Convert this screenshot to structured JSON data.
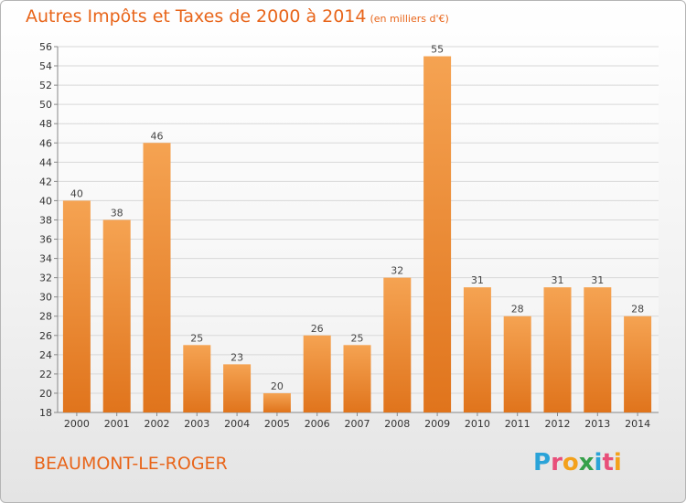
{
  "chart_data": {
    "type": "bar",
    "title": "Autres Impôts et Taxes de 2000 à 2014",
    "subtitle": "(en milliers d'€)",
    "categories": [
      "2000",
      "2001",
      "2002",
      "2003",
      "2004",
      "2005",
      "2006",
      "2007",
      "2008",
      "2009",
      "2010",
      "2011",
      "2012",
      "2013",
      "2014"
    ],
    "values": [
      40,
      38,
      46,
      25,
      23,
      20,
      26,
      25,
      32,
      55,
      31,
      28,
      31,
      31,
      28
    ],
    "ylim": [
      18,
      56
    ],
    "yticks": [
      18,
      20,
      22,
      24,
      26,
      28,
      30,
      32,
      34,
      36,
      38,
      40,
      42,
      44,
      46,
      48,
      50,
      52,
      54,
      56
    ],
    "grid": true,
    "bar_color": "#f0963a",
    "xlabel": "",
    "ylabel": ""
  },
  "footer": {
    "location": "BEAUMONT-LE-ROGER",
    "logo": {
      "text": "Proxiti",
      "letters": [
        {
          "ch": "P",
          "color": "#2aa3d8"
        },
        {
          "ch": "r",
          "color": "#e84f7a"
        },
        {
          "ch": "o",
          "color": "#f3a11b"
        },
        {
          "ch": "x",
          "color": "#35a04a"
        },
        {
          "ch": "i",
          "color": "#2aa3d8"
        },
        {
          "ch": "t",
          "color": "#e84f7a"
        },
        {
          "ch": "i",
          "color": "#f3a11b"
        }
      ]
    }
  },
  "colors": {
    "accent": "#e8651a",
    "grid": "#d8d8d8",
    "axis": "#888888"
  }
}
